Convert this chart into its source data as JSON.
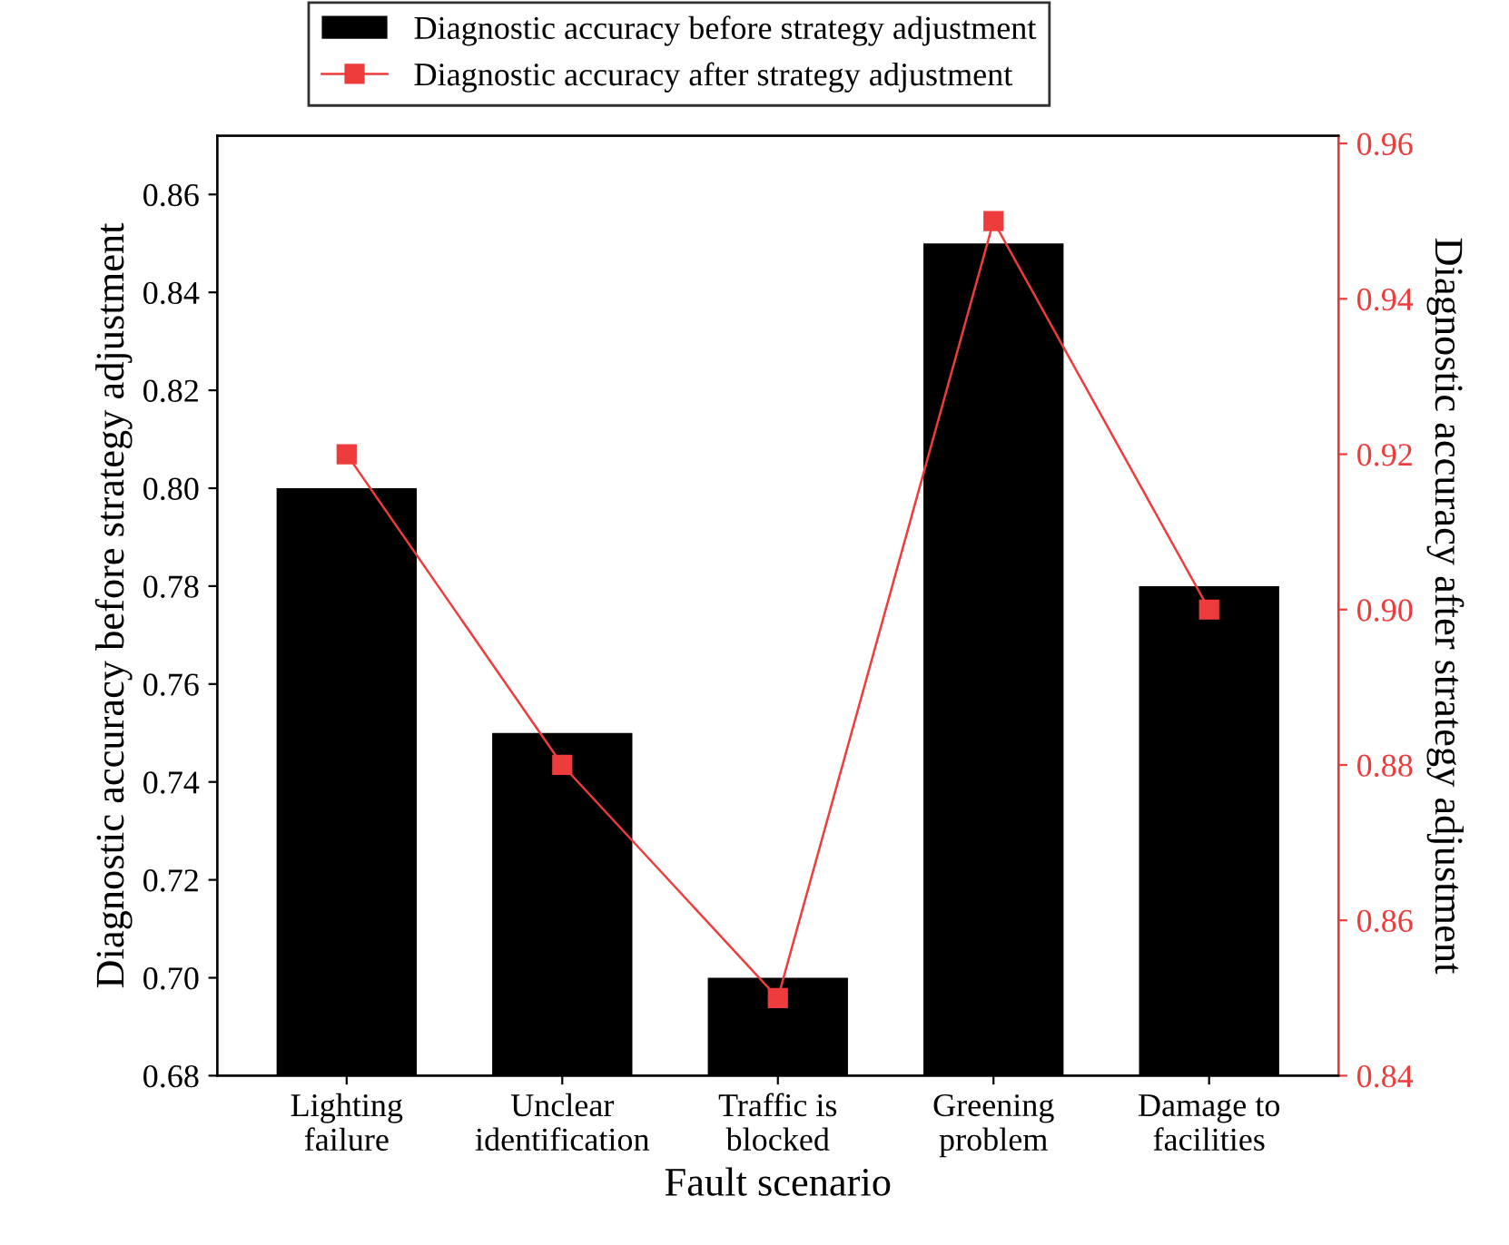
{
  "chart_data": {
    "type": "bar",
    "xlabel": "Fault scenario",
    "ylabel": "Diagnostic accuracy before strategy adjustment",
    "y2label": "Diagnostic accuracy after strategy adjustment",
    "categories": [
      "Lighting\nfailure",
      "Unclear\nidentification",
      "Traffic is\nblocked",
      "Greening\nproblem",
      "Damage to\nfacilities"
    ],
    "series": [
      {
        "name": "Diagnostic accuracy before strategy adjustment",
        "color": "#000000",
        "values": [
          0.8,
          0.75,
          0.7,
          0.85,
          0.78
        ]
      },
      {
        "name": "Diagnostic accuracy after strategy adjustment",
        "type": "line",
        "axis": "y2",
        "color": "#ee3b3b",
        "marker": "square",
        "line_style": "solid",
        "values": [
          0.92,
          0.88,
          0.85,
          0.95,
          0.9
        ]
      }
    ],
    "ylim": [
      0.68,
      0.872
    ],
    "yticks": [
      {
        "value": 0.68,
        "label": "0.68"
      },
      {
        "value": 0.7,
        "label": "0.70"
      },
      {
        "value": 0.72,
        "label": "0.72"
      },
      {
        "value": 0.74,
        "label": "0.74"
      },
      {
        "value": 0.76,
        "label": "0.76"
      },
      {
        "value": 0.78,
        "label": "0.78"
      },
      {
        "value": 0.8,
        "label": "0.80"
      },
      {
        "value": 0.82,
        "label": "0.82"
      },
      {
        "value": 0.84,
        "label": "0.84"
      },
      {
        "value": 0.86,
        "label": "0.86"
      }
    ],
    "y2lim": [
      0.84,
      0.961
    ],
    "y2ticks": [
      {
        "value": 0.84,
        "label": "0.84"
      },
      {
        "value": 0.86,
        "label": "0.86"
      },
      {
        "value": 0.88,
        "label": "0.88"
      },
      {
        "value": 0.9,
        "label": "0.90"
      },
      {
        "value": 0.92,
        "label": "0.92"
      },
      {
        "value": 0.94,
        "label": "0.94"
      },
      {
        "value": 0.96,
        "label": "0.96"
      }
    ],
    "legend": "top",
    "grid": false
  }
}
